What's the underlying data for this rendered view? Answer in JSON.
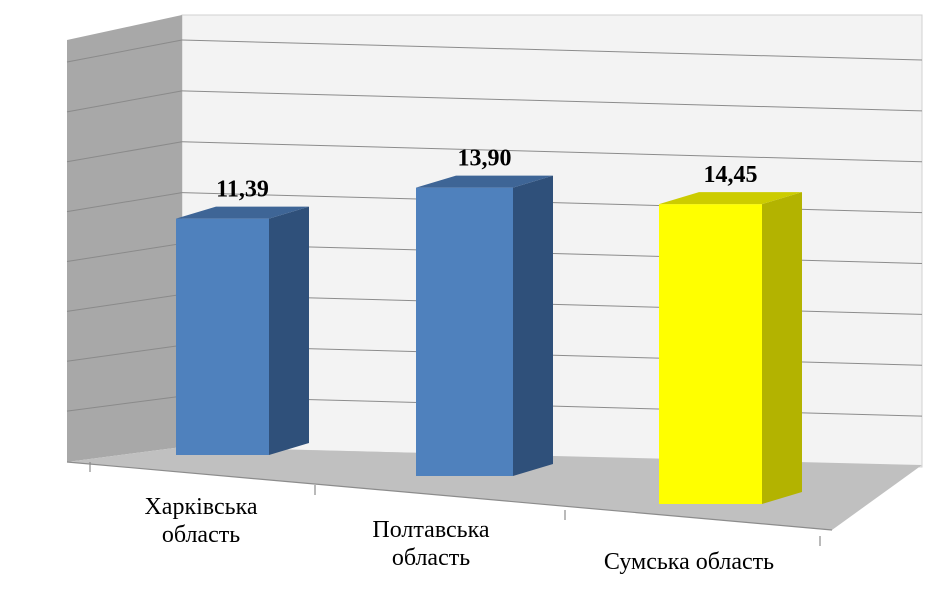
{
  "chart_data": {
    "type": "bar",
    "categories": [
      [
        "Харківська",
        "область"
      ],
      [
        "Полтавська",
        "область"
      ],
      [
        "Сумська область"
      ]
    ],
    "values": [
      11.39,
      13.9,
      14.45
    ],
    "value_labels": [
      "11,39",
      "13,90",
      "14,45"
    ],
    "title": "",
    "xlabel": "",
    "ylabel": "",
    "ylim": [
      0,
      16
    ],
    "grid": true,
    "legend": "none",
    "style": "3d-column",
    "colors": {
      "bar_front": [
        "#4F81BD",
        "#4F81BD",
        "#FFFF00"
      ],
      "bar_side": [
        "#2F507A",
        "#2F507A",
        "#B3B300"
      ],
      "bar_top": [
        "#3E6596",
        "#3E6596",
        "#CCCC00"
      ],
      "wall": "#F2F2F2",
      "side_wall": "#A6A6A6",
      "floor": "#BFBFBF",
      "grid": "#8C8C8C",
      "axis": "#8C8C8C"
    }
  }
}
